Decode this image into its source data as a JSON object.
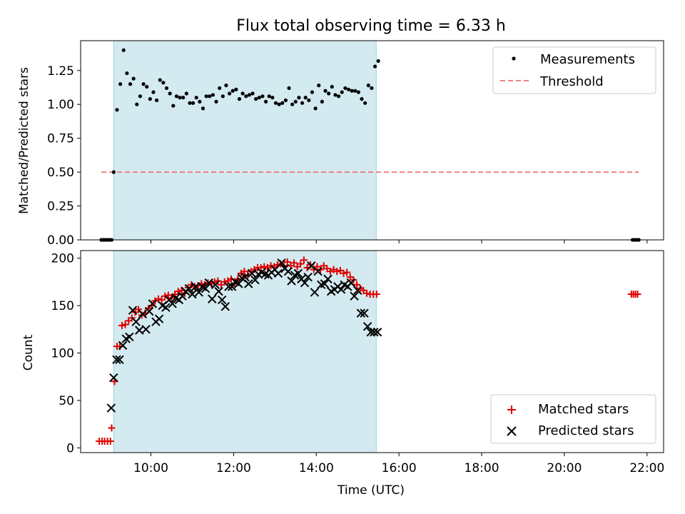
{
  "chart_data": [
    {
      "type": "scatter",
      "title": "Flux total observing time = 6.33 h",
      "xlabel": "",
      "ylabel": "Matched/Predicted stars",
      "xlim": [
        8.3,
        22.4
      ],
      "ylim": [
        0,
        1.47
      ],
      "yticks": [
        "0.00",
        "0.25",
        "0.50",
        "0.75",
        "1.00",
        "1.25"
      ],
      "ytick_values": [
        0,
        0.25,
        0.5,
        0.75,
        1.0,
        1.25
      ],
      "shaded_span": [
        9.1,
        15.45
      ],
      "colors": {
        "shade": "#d3eaf0",
        "shade_edge": "#9fd3db",
        "threshold": "#f08080",
        "measurement": "#000000"
      },
      "legend": {
        "position": "top-right",
        "entries": [
          "Measurements",
          "Threshold"
        ]
      },
      "threshold": {
        "name": "Threshold",
        "value": 0.5,
        "x_range": [
          8.8,
          21.8
        ]
      },
      "series": [
        {
          "name": "Measurements",
          "x": [
            8.8,
            8.85,
            8.9,
            8.95,
            9.0,
            9.05,
            9.1,
            9.18,
            9.26,
            9.34,
            9.42,
            9.5,
            9.58,
            9.66,
            9.74,
            9.82,
            9.9,
            9.98,
            10.06,
            10.14,
            10.22,
            10.3,
            10.38,
            10.46,
            10.54,
            10.62,
            10.7,
            10.78,
            10.86,
            10.94,
            11.02,
            11.1,
            11.18,
            11.26,
            11.34,
            11.42,
            11.5,
            11.58,
            11.66,
            11.74,
            11.82,
            11.9,
            11.98,
            12.06,
            12.14,
            12.22,
            12.3,
            12.38,
            12.46,
            12.54,
            12.62,
            12.7,
            12.78,
            12.86,
            12.94,
            13.02,
            13.1,
            13.18,
            13.26,
            13.34,
            13.42,
            13.5,
            13.58,
            13.66,
            13.74,
            13.82,
            13.9,
            13.98,
            14.06,
            14.14,
            14.22,
            14.3,
            14.38,
            14.46,
            14.54,
            14.62,
            14.7,
            14.78,
            14.86,
            14.94,
            15.02,
            15.1,
            15.18,
            15.26,
            15.34,
            15.42,
            15.5,
            21.65,
            21.7,
            21.75,
            21.8
          ],
          "y": [
            0.0,
            0.0,
            0.0,
            0.0,
            0.0,
            0.0,
            0.5,
            0.96,
            1.15,
            1.4,
            1.23,
            1.15,
            1.19,
            1.0,
            1.06,
            1.15,
            1.13,
            1.04,
            1.09,
            1.03,
            1.18,
            1.16,
            1.12,
            1.08,
            0.99,
            1.06,
            1.05,
            1.05,
            1.08,
            1.01,
            1.01,
            1.05,
            1.02,
            0.97,
            1.06,
            1.06,
            1.07,
            1.02,
            1.12,
            1.06,
            1.14,
            1.08,
            1.1,
            1.11,
            1.04,
            1.08,
            1.06,
            1.07,
            1.08,
            1.04,
            1.05,
            1.06,
            1.02,
            1.06,
            1.05,
            1.01,
            1.0,
            1.01,
            1.03,
            1.12,
            1.0,
            1.02,
            1.05,
            1.01,
            1.05,
            1.03,
            1.09,
            0.97,
            1.14,
            1.02,
            1.1,
            1.08,
            1.13,
            1.07,
            1.06,
            1.09,
            1.12,
            1.11,
            1.1,
            1.1,
            1.09,
            1.04,
            1.01,
            1.14,
            1.12,
            1.28,
            1.32,
            0.0,
            0.0,
            0.0,
            0.0
          ]
        }
      ]
    },
    {
      "type": "scatter",
      "title": "",
      "xlabel": "Time (UTC)",
      "ylabel": "Count",
      "xlim": [
        8.3,
        22.4
      ],
      "ylim": [
        -5,
        208
      ],
      "xticks": [
        "10:00",
        "12:00",
        "14:00",
        "16:00",
        "18:00",
        "20:00",
        "22:00"
      ],
      "xtick_values": [
        10,
        12,
        14,
        16,
        18,
        20,
        22
      ],
      "yticks": [
        "0",
        "50",
        "100",
        "150",
        "200"
      ],
      "ytick_values": [
        0,
        50,
        100,
        150,
        200
      ],
      "shaded_span": [
        9.1,
        15.45
      ],
      "colors": {
        "shade": "#d3eaf0",
        "shade_edge": "#9fd3db",
        "matched": "#e00000",
        "predicted": "#000000"
      },
      "legend": {
        "position": "bottom-right",
        "entries": [
          "Matched stars",
          "Predicted stars"
        ]
      },
      "series": [
        {
          "name": "Matched stars",
          "marker": "plus",
          "x": [
            8.75,
            8.82,
            8.88,
            8.95,
            9.02,
            9.05,
            9.12,
            9.18,
            9.25,
            9.3,
            9.38,
            9.46,
            9.54,
            9.62,
            9.7,
            9.78,
            9.86,
            9.94,
            10.02,
            10.1,
            10.18,
            10.26,
            10.34,
            10.42,
            10.5,
            10.58,
            10.66,
            10.74,
            10.82,
            10.9,
            10.98,
            11.06,
            11.14,
            11.22,
            11.3,
            11.38,
            11.46,
            11.54,
            11.62,
            11.7,
            11.78,
            11.86,
            11.94,
            12.02,
            12.1,
            12.18,
            12.26,
            12.34,
            12.42,
            12.5,
            12.58,
            12.66,
            12.74,
            12.82,
            12.9,
            12.98,
            13.06,
            13.14,
            13.22,
            13.3,
            13.38,
            13.46,
            13.54,
            13.62,
            13.7,
            13.78,
            13.86,
            13.94,
            14.02,
            14.1,
            14.18,
            14.26,
            14.34,
            14.42,
            14.5,
            14.58,
            14.66,
            14.74,
            14.82,
            14.9,
            14.98,
            15.06,
            15.14,
            15.22,
            15.3,
            15.38,
            15.46,
            21.62,
            21.67,
            21.72,
            21.77
          ],
          "y": [
            7,
            7,
            7,
            7,
            7,
            21,
            70,
            107,
            107,
            129,
            130,
            134,
            137,
            143,
            146,
            140,
            142,
            147,
            150,
            155,
            157,
            156,
            160,
            161,
            158,
            162,
            165,
            166,
            163,
            169,
            172,
            170,
            171,
            173,
            172,
            174,
            173,
            175,
            176,
            172,
            175,
            176,
            178,
            173,
            178,
            184,
            186,
            182,
            186,
            188,
            190,
            190,
            191,
            190,
            192,
            191,
            193,
            194,
            192,
            196,
            192,
            195,
            191,
            194,
            198,
            190,
            193,
            188,
            191,
            188,
            192,
            189,
            186,
            188,
            186,
            187,
            184,
            185,
            180,
            177,
            172,
            168,
            166,
            163,
            162,
            162,
            162,
            162,
            162,
            162,
            162
          ]
        },
        {
          "name": "Predicted stars",
          "marker": "x",
          "x": [
            9.04,
            9.1,
            9.17,
            9.24,
            9.32,
            9.4,
            9.48,
            9.56,
            9.64,
            9.72,
            9.8,
            9.88,
            9.96,
            10.04,
            10.12,
            10.2,
            10.28,
            10.36,
            10.44,
            10.52,
            10.6,
            10.68,
            10.76,
            10.84,
            10.92,
            11.0,
            11.08,
            11.16,
            11.24,
            11.32,
            11.4,
            11.48,
            11.56,
            11.64,
            11.72,
            11.8,
            11.88,
            11.96,
            12.04,
            12.12,
            12.2,
            12.28,
            12.36,
            12.44,
            12.52,
            12.6,
            12.68,
            12.76,
            12.84,
            12.92,
            13.0,
            13.08,
            13.16,
            13.24,
            13.32,
            13.4,
            13.48,
            13.56,
            13.64,
            13.72,
            13.8,
            13.88,
            13.96,
            14.04,
            14.12,
            14.2,
            14.28,
            14.36,
            14.44,
            14.52,
            14.6,
            14.68,
            14.76,
            14.84,
            14.92,
            15.0,
            15.08,
            15.16,
            15.24,
            15.32,
            15.4,
            15.48
          ],
          "y": [
            42,
            74,
            93,
            93,
            108,
            115,
            117,
            145,
            133,
            124,
            141,
            125,
            144,
            152,
            133,
            136,
            150,
            148,
            156,
            152,
            158,
            156,
            160,
            165,
            168,
            162,
            170,
            164,
            170,
            168,
            174,
            157,
            172,
            165,
            156,
            149,
            170,
            170,
            175,
            173,
            179,
            180,
            173,
            184,
            177,
            183,
            185,
            183,
            182,
            185,
            188,
            184,
            195,
            189,
            186,
            176,
            182,
            184,
            178,
            174,
            180,
            192,
            164,
            186,
            172,
            173,
            178,
            165,
            167,
            170,
            167,
            172,
            170,
            174,
            160,
            166,
            142,
            142,
            128,
            122,
            122,
            122
          ]
        }
      ]
    }
  ]
}
